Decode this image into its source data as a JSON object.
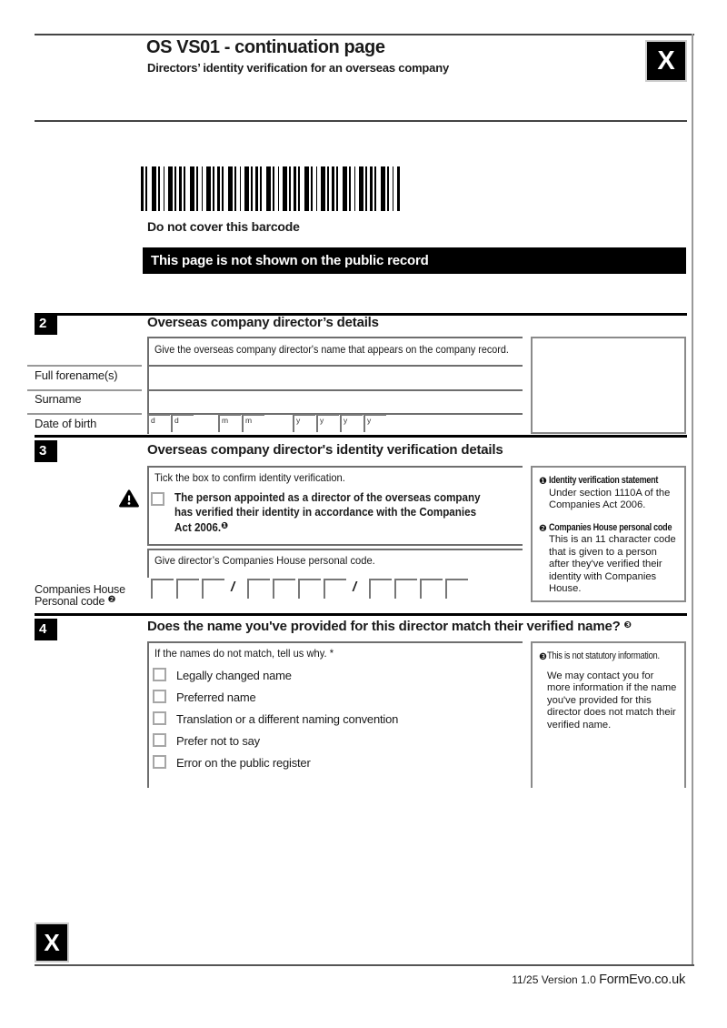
{
  "page": {
    "title": "OS VS01 - continuation page",
    "subtitle": "Directors’ identity verification for an overseas company",
    "corner_mark_top": "X",
    "corner_mark_bottom": "X"
  },
  "barcode": {
    "caption": "Do not cover this barcode",
    "banner": "This page is not shown on the public record"
  },
  "section2": {
    "number": "2",
    "title": "Overseas company director’s details",
    "instruction": "Give the overseas company director's name that appears on the company record.",
    "labels": [
      "Full forename(s)",
      "Surname",
      "Date of birth"
    ],
    "dob_letters": [
      "d",
      "d",
      "m",
      "m",
      "y",
      "y",
      "y",
      "y"
    ]
  },
  "section3": {
    "number": "3",
    "title": "Overseas company director's identity verification details",
    "tick_instruction": "Tick the box to confirm identity verification.",
    "statement_lines": [
      "The person appointed as a director of the overseas company",
      "has verified their identity in accordance with the Companies",
      "Act 2006."
    ],
    "statement_ref": "❶",
    "code_instruction": "Give director’s Companies House personal code.",
    "code_label_line1": "Companies House",
    "code_label_line2": "Personal code ",
    "code_label_ref": "❷",
    "code_format": [
      3,
      4,
      4
    ],
    "code_separator": "/",
    "sidebar": {
      "note1_ref": "❶",
      "note1_title": "Identity verification statement",
      "note1_body": "Under section 1110A of the Companies Act 2006.",
      "note2_ref": "❷",
      "note2_title": "Companies House personal code",
      "note2_body": "This is an 11 character code that is given to a person after they've verified their identity with Companies House."
    }
  },
  "section4": {
    "number": "4",
    "title": "Does the name you've provided for this director match their verified name? ",
    "title_ref": "❸",
    "instruction": "If the names do not match, tell us why. *",
    "options": [
      "Legally changed name",
      "Preferred name",
      "Translation or a different naming convention",
      "Prefer not to say",
      "Error on the public register"
    ],
    "sidebar": {
      "ref": "❸",
      "intro": "This is not statutory information.",
      "body": "We may contact you for more information if the name you've provided for this director does not match their verified name."
    }
  },
  "footer": {
    "version": "11/25 Version 1.0 ",
    "brand": "FormEvo.co.uk"
  }
}
